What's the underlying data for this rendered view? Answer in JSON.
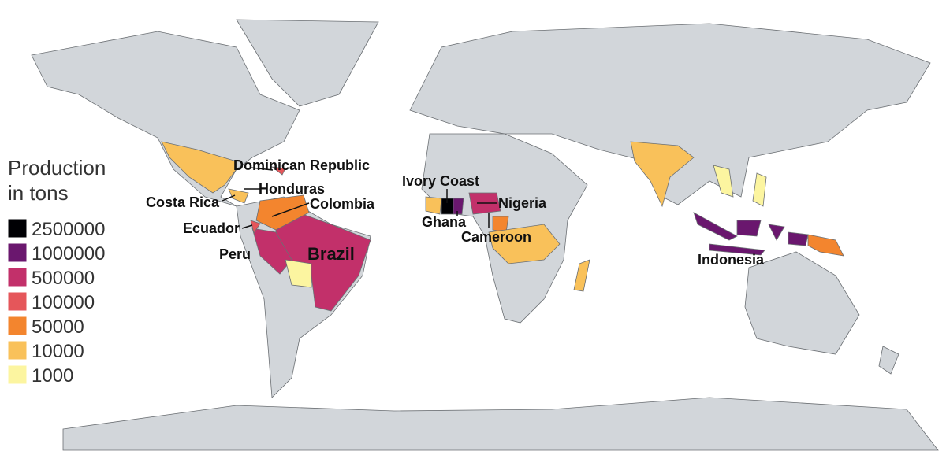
{
  "legend": {
    "title_lines": [
      "Production",
      "in tons"
    ],
    "items": [
      {
        "value": 2500000,
        "color": "#000004"
      },
      {
        "value": 1000000,
        "color": "#6a176e"
      },
      {
        "value": 500000,
        "color": "#c2306a"
      },
      {
        "value": 100000,
        "color": "#e5565a"
      },
      {
        "value": 50000,
        "color": "#f3852e"
      },
      {
        "value": 10000,
        "color": "#f9c15a"
      },
      {
        "value": 1000,
        "color": "#fcf5a0"
      }
    ]
  },
  "labels": [
    "Dominican Republic",
    "Honduras",
    "Costa Rica",
    "Colombia",
    "Ecuador",
    "Peru",
    "Brazil",
    "Ivory Coast",
    "Ghana",
    "Nigeria",
    "Cameroon",
    "Indonesia"
  ]
}
